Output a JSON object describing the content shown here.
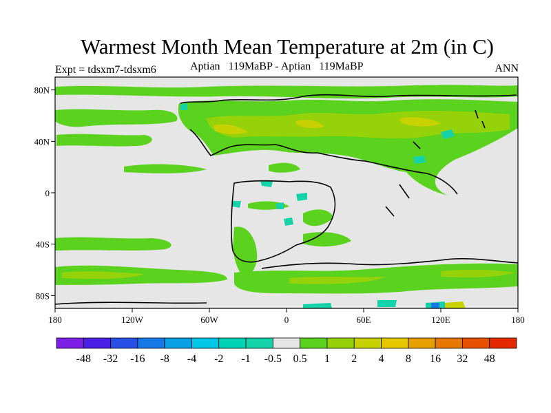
{
  "title": "Warmest Month Mean Temperature at 2m (in C)",
  "left_string": "Expt = tdsxm7-tdsxm6",
  "center_string": "Aptian   119MaBP - Aptian   119MaBP",
  "right_string": "ANN",
  "colors": {
    "background_field": "#e6e6e6",
    "coastline": "#000000",
    "frame": "#000000"
  },
  "map": {
    "projection": "cylindrical-equidistant",
    "lon_range": [
      -180,
      180
    ],
    "lat_range": [
      -90,
      90
    ],
    "lat_tick_labels": [
      "80N",
      "40N",
      "0",
      "40S",
      "80S"
    ],
    "lon_tick_labels": [
      "180",
      "120W",
      "60W",
      "0",
      "60E",
      "120E",
      "180"
    ]
  },
  "colorbar": {
    "colors": [
      "#7d1ee6",
      "#4b1ee6",
      "#2850e6",
      "#1478e6",
      "#0aa0e6",
      "#00c8e6",
      "#00d2b4",
      "#14d2aa",
      "#e6e6e6",
      "#5ad21e",
      "#96d20a",
      "#c8d200",
      "#e6c800",
      "#e6a000",
      "#e67800",
      "#e65000",
      "#e62800"
    ],
    "labels": [
      "-48",
      "-32",
      "-16",
      "-8",
      "-4",
      "-2",
      "-1",
      "-0.5",
      "0.5",
      "1",
      "2",
      "4",
      "8",
      "16",
      "32",
      "48"
    ]
  }
}
